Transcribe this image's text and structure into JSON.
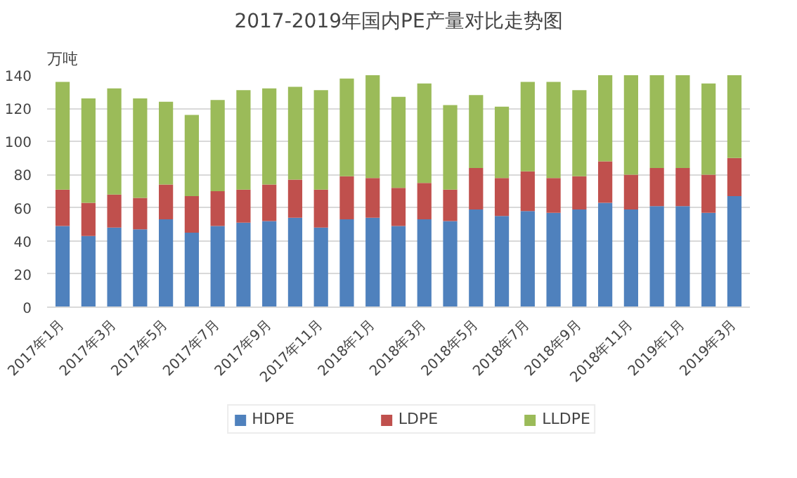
{
  "chart_data": {
    "type": "bar",
    "title": "2017-2019年国内PE产量对比走势图",
    "ylabel": "万吨",
    "stacked": true,
    "categories": [
      "2017年1月",
      null,
      "2017年3月",
      null,
      "2017年5月",
      null,
      "2017年7月",
      null,
      "2017年9月",
      null,
      "2017年11月",
      null,
      "2018年1月",
      null,
      "2018年3月",
      null,
      "2018年5月",
      null,
      "2018年7月",
      null,
      "2018年9月",
      null,
      "2018年11月",
      null,
      "2019年1月",
      null,
      "2019年3月"
    ],
    "series": [
      {
        "name": "HDPE",
        "color": "#4f81bd",
        "values": [
          49,
          43,
          48,
          47,
          53,
          45,
          49,
          51,
          52,
          54,
          48,
          53,
          54,
          49,
          53,
          52,
          59,
          55,
          58,
          57,
          59,
          63,
          59,
          61,
          61,
          57,
          67
        ]
      },
      {
        "name": "LDPE",
        "color": "#c0504d",
        "values": [
          22,
          20,
          20,
          19,
          21,
          22,
          21,
          20,
          22,
          23,
          23,
          26,
          24,
          23,
          22,
          19,
          25,
          23,
          24,
          21,
          20,
          25,
          21,
          23,
          23,
          23,
          23
        ]
      },
      {
        "name": "LLDPE",
        "color": "#9bbb59",
        "values": [
          65,
          63,
          64,
          60,
          50,
          49,
          55,
          60,
          58,
          56,
          60,
          59,
          62,
          55,
          60,
          51,
          44,
          43,
          54,
          58,
          52,
          52,
          60,
          56,
          56,
          55,
          50
        ]
      }
    ],
    "ylim": [
      0,
      140
    ],
    "yticks": [
      0,
      20,
      40,
      60,
      80,
      100,
      120,
      140
    ],
    "grid": "y",
    "legend": "bottom"
  }
}
